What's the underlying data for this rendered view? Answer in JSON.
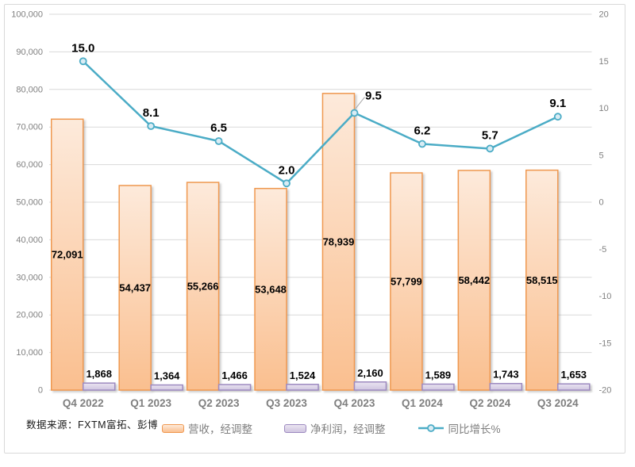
{
  "source_note": "数据来源：FXTM富拓、彭博",
  "legend": {
    "items": [
      {
        "label": "营收，经调整",
        "swatch": "revenue"
      },
      {
        "label": "净利润，经调整",
        "swatch": "profit"
      },
      {
        "label": "同比增长%",
        "swatch": "growth-line"
      }
    ]
  },
  "colors": {
    "revenue_fill_top": "#FDEADB",
    "revenue_fill_bottom": "#FABF8F",
    "revenue_border": "#EF9850",
    "profit_fill_top": "#EAE4F1",
    "profit_fill_bottom": "#CFC5E0",
    "profit_border": "#9D8AC0",
    "growth_line": "#4BACC6",
    "growth_marker_fill": "#D9ECF4",
    "gridline": "#D9D9D9",
    "frame_border": "#D9D9D9",
    "axis_text": "#808080",
    "category_text": "#7F7F7F",
    "data_label": "#000000",
    "legend_text": "#7F7F7F",
    "leader_line": "#A6A6A6"
  },
  "chart_data": {
    "type": "combo",
    "title": "",
    "categories": [
      "Q4 2022",
      "Q1 2023",
      "Q2 2023",
      "Q3 2023",
      "Q4 2023",
      "Q1 2024",
      "Q2 2024",
      "Q3 2024"
    ],
    "series": [
      {
        "name": "营收，经调整",
        "type": "bar",
        "axis": "left",
        "values": [
          72091,
          54437,
          55266,
          53648,
          78939,
          57799,
          58442,
          58515
        ],
        "labels": [
          "72,091",
          "54,437",
          "55,266",
          "53,648",
          "78,939",
          "57,799",
          "58,442",
          "58,515"
        ],
        "label_position": "inside-center"
      },
      {
        "name": "净利润，经调整",
        "type": "bar",
        "axis": "left",
        "values": [
          1868,
          1364,
          1466,
          1524,
          2160,
          1589,
          1743,
          1653
        ],
        "labels": [
          "1,868",
          "1,364",
          "1,466",
          "1,524",
          "2,160",
          "1,589",
          "1,743",
          "1,653"
        ],
        "label_position": "outside-top"
      },
      {
        "name": "同比增长%",
        "type": "line",
        "axis": "right",
        "values": [
          15.0,
          8.1,
          6.5,
          2.0,
          9.5,
          6.2,
          5.7,
          9.1
        ],
        "labels": [
          "15.0",
          "8.1",
          "6.5",
          "2.0",
          "9.5",
          "6.2",
          "5.7",
          "9.1"
        ],
        "label_position": "above",
        "callout_index": 4
      }
    ],
    "left_axis": {
      "min": 0,
      "max": 100000,
      "step": 10000,
      "tick_labels": [
        "0",
        "10,000",
        "20,000",
        "30,000",
        "40,000",
        "50,000",
        "60,000",
        "70,000",
        "80,000",
        "90,000",
        "100,000"
      ]
    },
    "right_axis": {
      "min": -20,
      "max": 20,
      "step": 5,
      "tick_labels": [
        "-20",
        "-15",
        "-10",
        "-5",
        "0",
        "5",
        "10",
        "15",
        "20"
      ]
    },
    "grid": "horizontal-only",
    "legend_position": "bottom"
  }
}
